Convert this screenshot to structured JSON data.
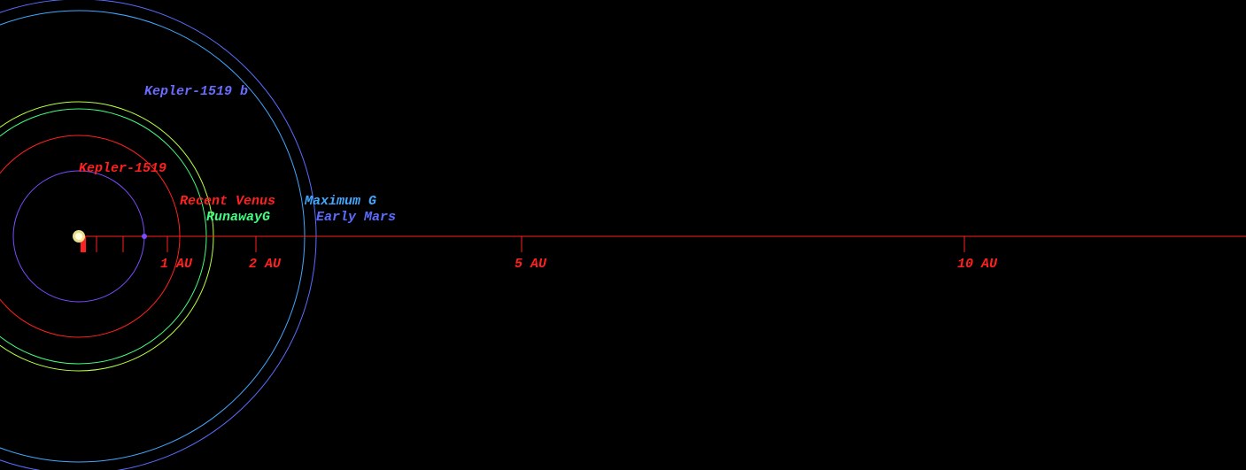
{
  "star": {
    "name": "Kepler-1519",
    "color": "#ff2020"
  },
  "planets": [
    {
      "name": "Kepler-1519 b",
      "a_au": 0.74,
      "color": "#7a4cff",
      "label_color": "#6a6cff"
    }
  ],
  "zones": [
    {
      "name": "Recent Venus",
      "r_au": 1.14,
      "color": "#ff2020"
    },
    {
      "name": "RunawayG",
      "r_au": 1.44,
      "color": "#40ff80"
    },
    {
      "r_au": 1.52,
      "color": "#b8ff40"
    },
    {
      "name": "Maximum G",
      "r_au": 2.55,
      "color": "#40a8ff"
    },
    {
      "name": "Early Mars",
      "r_au": 2.68,
      "color": "#5a6cff"
    }
  ],
  "axis": {
    "color": "#ff2020",
    "ticks": [
      {
        "value": 1,
        "label": "1 AU"
      },
      {
        "value": 2,
        "label": "2 AU"
      },
      {
        "value": 5,
        "label": "5 AU"
      },
      {
        "value": 10,
        "label": "10 AU"
      }
    ],
    "minor_ticks": [
      0.03,
      0.05,
      0.07,
      0.2,
      0.5
    ]
  }
}
